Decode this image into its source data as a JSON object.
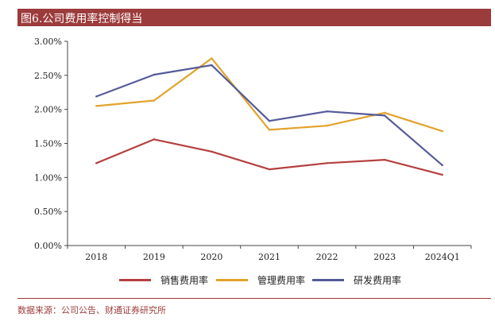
{
  "header": {
    "cut_text": "",
    "title": "图6.公司费用率控制得当"
  },
  "chart_data": {
    "type": "line",
    "title": "",
    "xlabel": "",
    "ylabel": "",
    "categories": [
      "2018",
      "2019",
      "2020",
      "2021",
      "2022",
      "2023",
      "2024Q1"
    ],
    "ylim": [
      0,
      3.0
    ],
    "yticks": [
      "0.00%",
      "0.50%",
      "1.00%",
      "1.50%",
      "2.00%",
      "2.50%",
      "3.00%"
    ],
    "ytick_values": [
      0,
      0.5,
      1.0,
      1.5,
      2.0,
      2.5,
      3.0
    ],
    "grid": false,
    "legend_position": "bottom",
    "series": [
      {
        "name": "销售费用率",
        "color": "#b5403f",
        "values": [
          1.21,
          1.56,
          1.38,
          1.12,
          1.21,
          1.26,
          1.04
        ]
      },
      {
        "name": "管理费用率",
        "color": "#e2a32a",
        "values": [
          2.05,
          2.13,
          2.75,
          1.7,
          1.76,
          1.95,
          1.68
        ]
      },
      {
        "name": "研发费用率",
        "color": "#555a9a",
        "values": [
          2.19,
          2.51,
          2.65,
          1.83,
          1.97,
          1.91,
          1.18
        ]
      }
    ]
  },
  "footer": {
    "source": "数据来源：公司公告、财通证券研究所"
  }
}
